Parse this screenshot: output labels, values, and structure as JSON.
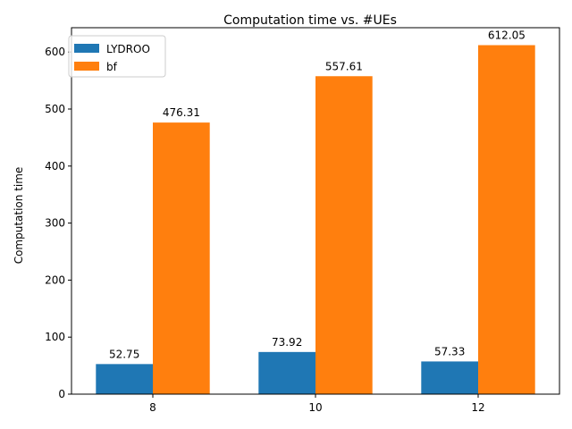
{
  "chart_data": {
    "type": "bar",
    "title": "Computation time vs. #UEs",
    "xlabel": "",
    "ylabel": "Computation time",
    "categories": [
      "8",
      "10",
      "12"
    ],
    "series": [
      {
        "name": "LYDROO",
        "color": "#1f77b4",
        "values": [
          52.75,
          73.92,
          57.33
        ],
        "labels": [
          "52.75",
          "73.92",
          "57.33"
        ]
      },
      {
        "name": "bf",
        "color": "#ff7f0e",
        "values": [
          476.31,
          557.61,
          612.05
        ],
        "labels": [
          "476.31",
          "557.61",
          "612.05"
        ]
      }
    ],
    "ylim": [
      0,
      642.65
    ],
    "yticks": [
      0,
      100,
      200,
      300,
      400,
      500,
      600
    ],
    "grid": false,
    "legend": "top-left"
  }
}
